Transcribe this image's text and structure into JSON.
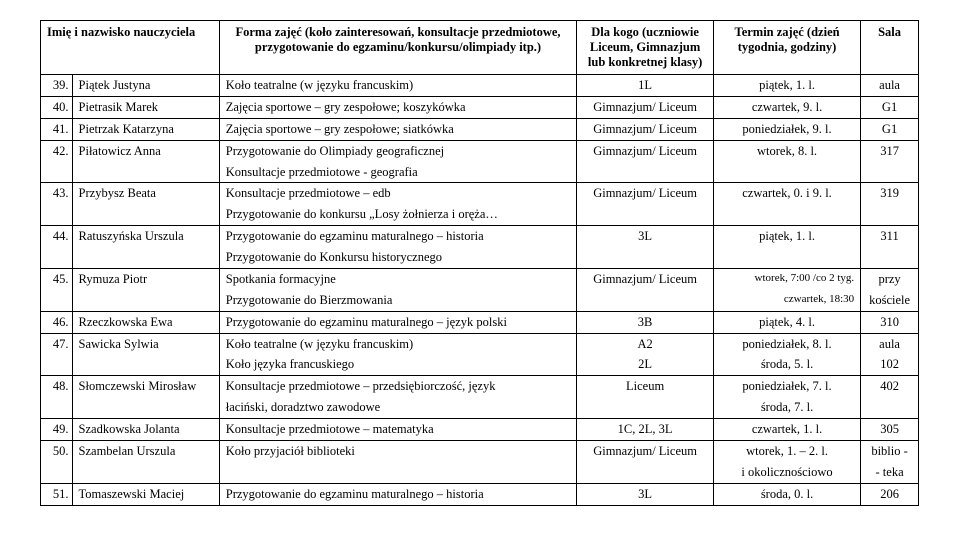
{
  "headers": {
    "name": "Imię i nazwisko nauczyciela",
    "form": "Forma zajęć (koło zainteresowań, konsultacje przedmiotowe, przygotowanie do egzaminu/konkursu/olimpiady itp.)",
    "kogo": "Dla kogo (uczniowie Liceum, Gimnazjum lub konkretnej klasy)",
    "term": "Termin zajęć (dzień tygodnia, godziny)",
    "sala": "Sala"
  },
  "rows": [
    {
      "num": "39.",
      "name": "Piątek Justyna",
      "form": "Koło teatralne (w języku francuskim)",
      "kogo": "1L",
      "term": "piątek, 1. l.",
      "sala": "aula",
      "sepTop": true,
      "sep": true
    },
    {
      "num": "40.",
      "name": "Pietrasik Marek",
      "form": "Zajęcia sportowe – gry zespołowe; koszykówka",
      "kogo": "Gimnazjum/ Liceum",
      "term": "czwartek, 9. l.",
      "sala": "G1",
      "sep": true
    },
    {
      "num": "41.",
      "name": "Pietrzak Katarzyna",
      "form": "Zajęcia sportowe – gry zespołowe; siatkówka",
      "kogo": "Gimnazjum/ Liceum",
      "term": "poniedziałek, 9. l.",
      "sala": "G1",
      "sep": true
    },
    {
      "num": "42.",
      "name": "Piłatowicz Anna",
      "form": "Przygotowanie do Olimpiady geograficznej",
      "kogo": "Gimnazjum/ Liceum",
      "term": "wtorek, 8. l.",
      "sala": "317"
    },
    {
      "num": "",
      "name": "",
      "form": "Konsultacje przedmiotowe - geografia",
      "kogo": "",
      "term": "",
      "sala": "",
      "sep": true
    },
    {
      "num": "43.",
      "name": "Przybysz Beata",
      "form": "Konsultacje przedmiotowe – edb",
      "kogo": "Gimnazjum/ Liceum",
      "term": "czwartek, 0. i 9. l.",
      "sala": "319"
    },
    {
      "num": "",
      "name": "",
      "form": "Przygotowanie do konkursu „Losy żołnierza i oręża…",
      "kogo": "",
      "term": "",
      "sala": "",
      "sep": true
    },
    {
      "num": "44.",
      "name": "Ratuszyńska Urszula",
      "form": "Przygotowanie do egzaminu maturalnego – historia",
      "kogo": "3L",
      "term": "piątek, 1. l.",
      "sala": "311"
    },
    {
      "num": "",
      "name": "",
      "form": "Przygotowanie do Konkursu historycznego",
      "kogo": "",
      "term": "",
      "sala": "",
      "sep": true
    },
    {
      "num": "45.",
      "name": "Rymuza Piotr",
      "form": "Spotkania formacyjne",
      "kogo": "Gimnazjum/ Liceum",
      "term": "wtorek, 7:00 /co 2 tyg.",
      "sala": "przy",
      "termSmall": true
    },
    {
      "num": "",
      "name": "",
      "form": "Przygotowanie do Bierzmowania",
      "kogo": "",
      "term": "czwartek, 18:30",
      "sala": "kościele",
      "sep": true,
      "termSmall": true
    },
    {
      "num": "46.",
      "name": "Rzeczkowska Ewa",
      "form": "Przygotowanie do egzaminu maturalnego – język polski",
      "kogo": "3B",
      "term": "piątek, 4. l.",
      "sala": "310",
      "sep": true
    },
    {
      "num": "47.",
      "name": "Sawicka Sylwia",
      "form": "Koło teatralne (w języku francuskim)",
      "kogo": "A2",
      "term": "poniedziałek, 8. l.",
      "sala": "aula",
      "sepTop": true
    },
    {
      "num": "",
      "name": "",
      "form": "Koło języka francuskiego",
      "kogo": "2L",
      "term": "środa, 5. l.",
      "sala": "102",
      "sep": true
    },
    {
      "num": "48.",
      "name": "Słomczewski Mirosław",
      "form": "Konsultacje przedmiotowe – przedsiębiorczość, język",
      "kogo": "Liceum",
      "term": "poniedziałek, 7. l.",
      "sala": "402"
    },
    {
      "num": "",
      "name": "",
      "form": "łaciński, doradztwo zawodowe",
      "kogo": "",
      "term": "środa, 7. l.",
      "sala": "",
      "sep": true
    },
    {
      "num": "49.",
      "name": "Szadkowska Jolanta",
      "form": "Konsultacje przedmiotowe – matematyka",
      "kogo": "1C, 2L, 3L",
      "term": "czwartek, 1. l.",
      "sala": "305",
      "sep": true
    },
    {
      "num": "50.",
      "name": "Szambelan Urszula",
      "form": "Koło przyjaciół biblioteki",
      "kogo": "Gimnazjum/ Liceum",
      "term": "wtorek, 1. – 2. l.",
      "sala": "biblio -"
    },
    {
      "num": "",
      "name": "",
      "form": "",
      "kogo": "",
      "term": "i okolicznościowo",
      "sala": "- teka",
      "sep": true
    },
    {
      "num": "51.",
      "name": "Tomaszewski Maciej",
      "form": "Przygotowanie do egzaminu maturalnego – historia",
      "kogo": "3L",
      "term": "środa, 0. l.",
      "sala": "206",
      "sep": true
    }
  ]
}
